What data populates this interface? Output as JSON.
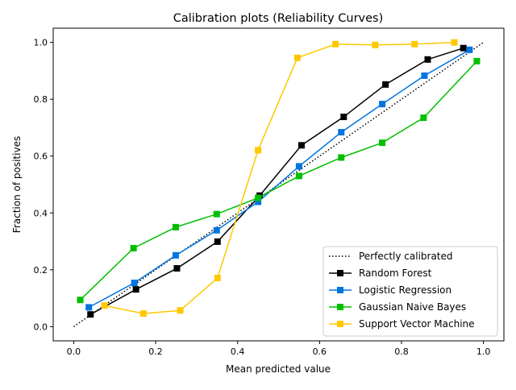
{
  "chart_data": {
    "type": "line",
    "title": "Calibration plots (Reliability Curves)",
    "xlabel": "Mean predicted value",
    "ylabel": "Fraction of positives",
    "xlim": [
      -0.05,
      1.05
    ],
    "ylim": [
      -0.05,
      1.05
    ],
    "xticks": [
      "0.0",
      "0.2",
      "0.4",
      "0.6",
      "0.8",
      "1.0"
    ],
    "yticks": [
      "0.0",
      "0.2",
      "0.4",
      "0.6",
      "0.8",
      "1.0"
    ],
    "grid": false,
    "legend_position": "bottom-right",
    "series": [
      {
        "name": "Perfectly calibrated",
        "color": "#000000",
        "style": "dotted",
        "marker": "none",
        "x": [
          0,
          1
        ],
        "y": [
          0,
          1
        ]
      },
      {
        "name": "Random Forest",
        "color": "#000000",
        "style": "solid",
        "marker": "square",
        "x": [
          0.041,
          0.152,
          0.252,
          0.351,
          0.454,
          0.556,
          0.659,
          0.761,
          0.864,
          0.951
        ],
        "y": [
          0.043,
          0.131,
          0.205,
          0.299,
          0.461,
          0.638,
          0.738,
          0.852,
          0.94,
          0.98
        ]
      },
      {
        "name": "Logistic Regression",
        "color": "#0074e0",
        "style": "solid",
        "marker": "square",
        "x": [
          0.037,
          0.148,
          0.249,
          0.349,
          0.45,
          0.55,
          0.653,
          0.753,
          0.856,
          0.966
        ],
        "y": [
          0.068,
          0.154,
          0.251,
          0.339,
          0.439,
          0.564,
          0.684,
          0.783,
          0.883,
          0.974
        ]
      },
      {
        "name": "Gaussian Naive Bayes",
        "color": "#00bf00",
        "style": "solid",
        "marker": "square",
        "x": [
          0.016,
          0.146,
          0.249,
          0.349,
          0.45,
          0.55,
          0.653,
          0.753,
          0.854,
          0.984
        ],
        "y": [
          0.094,
          0.276,
          0.35,
          0.396,
          0.453,
          0.53,
          0.595,
          0.647,
          0.735,
          0.934
        ]
      },
      {
        "name": "Support Vector Machine",
        "color": "#ffc800",
        "style": "solid",
        "marker": "square",
        "x": [
          0.075,
          0.17,
          0.26,
          0.351,
          0.45,
          0.546,
          0.639,
          0.736,
          0.832,
          0.929
        ],
        "y": [
          0.074,
          0.046,
          0.057,
          0.171,
          0.621,
          0.946,
          0.994,
          0.991,
          0.994,
          1.0
        ]
      }
    ]
  }
}
